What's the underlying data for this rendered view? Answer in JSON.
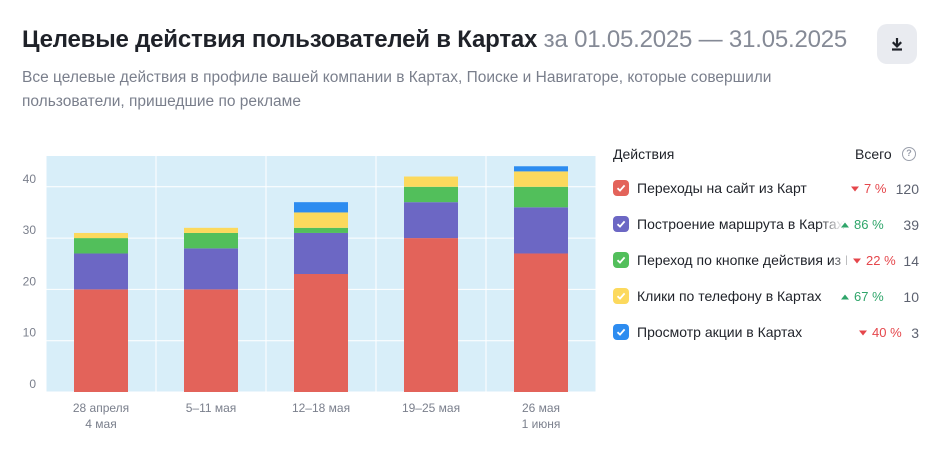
{
  "header": {
    "title": "Целевые действия пользователей в Картах",
    "period": "за 01.05.2025 — 31.05.2025",
    "subtitle": "Все целевые действия в профиле вашей компании в Картах, Поиске и Навигаторе, которые совершили пользователи, пришедшие по рекламе"
  },
  "icons": {
    "download": "download-icon",
    "help": "help-icon",
    "check": "check-icon"
  },
  "legend": {
    "actions_header": "Действия",
    "total_header": "Всего",
    "help_symbol": "?",
    "items": [
      {
        "label": "Переходы на сайт из Карт",
        "change_text": "7 %",
        "direction": "down",
        "total": "120",
        "color": "#e3635a"
      },
      {
        "label": "Построение маршрута в Картах",
        "change_text": "86 %",
        "direction": "up",
        "total": "39",
        "color": "#6c67c4"
      },
      {
        "label": "Переход по кнопке действия из Карт",
        "change_text": "22 %",
        "direction": "down",
        "total": "14",
        "color": "#52bf5b"
      },
      {
        "label": "Клики по телефону в Картах",
        "change_text": "67 %",
        "direction": "up",
        "total": "10",
        "color": "#fcd95d"
      },
      {
        "label": "Просмотр акции в Картах",
        "change_text": "40 %",
        "direction": "down",
        "total": "3",
        "color": "#2d8cf0"
      }
    ]
  },
  "chart_data": {
    "type": "bar",
    "stacked": true,
    "categories": [
      [
        "28 апреля",
        "4 мая"
      ],
      [
        "5–11 мая"
      ],
      [
        "12–18 мая"
      ],
      [
        "19–25 мая"
      ],
      [
        "26 мая",
        "1 июня"
      ]
    ],
    "series": [
      {
        "name": "Переходы на сайт из Карт",
        "color": "#e3635a",
        "values": [
          20,
          20,
          23,
          30,
          27
        ]
      },
      {
        "name": "Построение маршрута в Картах",
        "color": "#6c67c4",
        "values": [
          7,
          8,
          8,
          7,
          9
        ]
      },
      {
        "name": "Переход по кнопке действия из Карт",
        "color": "#52bf5b",
        "values": [
          3,
          3,
          1,
          3,
          4
        ]
      },
      {
        "name": "Клики по телефону в Картах",
        "color": "#fcd95d",
        "values": [
          1,
          1,
          3,
          2,
          3
        ]
      },
      {
        "name": "Просмотр акции в Картах",
        "color": "#2d8cf0",
        "values": [
          0,
          0,
          2,
          0,
          1
        ]
      }
    ],
    "yticks": [
      0,
      10,
      20,
      30,
      40
    ],
    "ylim": [
      0,
      46
    ],
    "grid": true,
    "background": "#d8eef9"
  }
}
